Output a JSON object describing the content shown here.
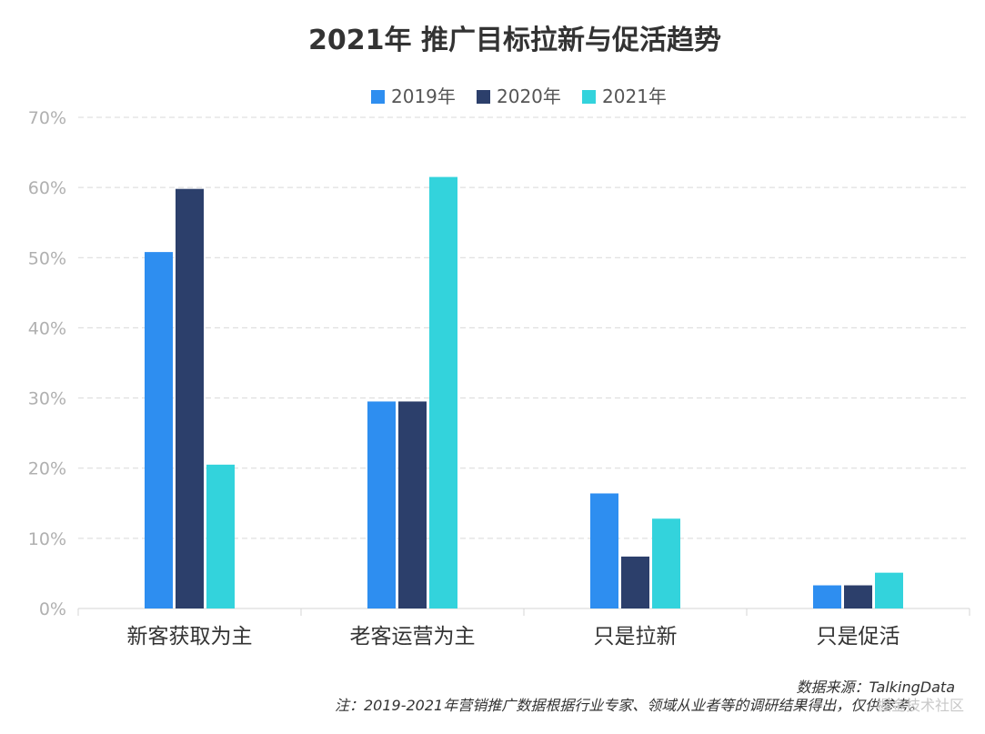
{
  "chart_data": {
    "type": "bar",
    "title": "2021年  推广目标拉新与促活趋势",
    "categories": [
      "新客获取为主",
      "老客运营为主",
      "只是拉新",
      "只是促活"
    ],
    "series": [
      {
        "name": "2019年",
        "color": "#2e8ef0",
        "values": [
          50.8,
          29.5,
          16.4,
          3.3
        ]
      },
      {
        "name": "2020年",
        "color": "#2c3f6b",
        "values": [
          59.8,
          29.5,
          7.4,
          3.3
        ]
      },
      {
        "name": "2021年",
        "color": "#33d3dc",
        "values": [
          20.5,
          61.5,
          12.8,
          5.1
        ]
      }
    ],
    "ylim": [
      0,
      70
    ],
    "yticks": [
      0,
      10,
      20,
      30,
      40,
      50,
      60,
      70
    ],
    "ytick_labels": [
      "0%",
      "10%",
      "20%",
      "30%",
      "40%",
      "50%",
      "60%",
      "70%"
    ],
    "xlabel": "",
    "ylabel": "",
    "legend_position": "top-center",
    "grid": true
  },
  "footer": {
    "source": "数据来源：TalkingData",
    "note": "注：2019-2021年营销推广数据根据行业专家、领域从业者等的调研结果得出，仅供参考。",
    "watermark": "掘金技术社区"
  }
}
